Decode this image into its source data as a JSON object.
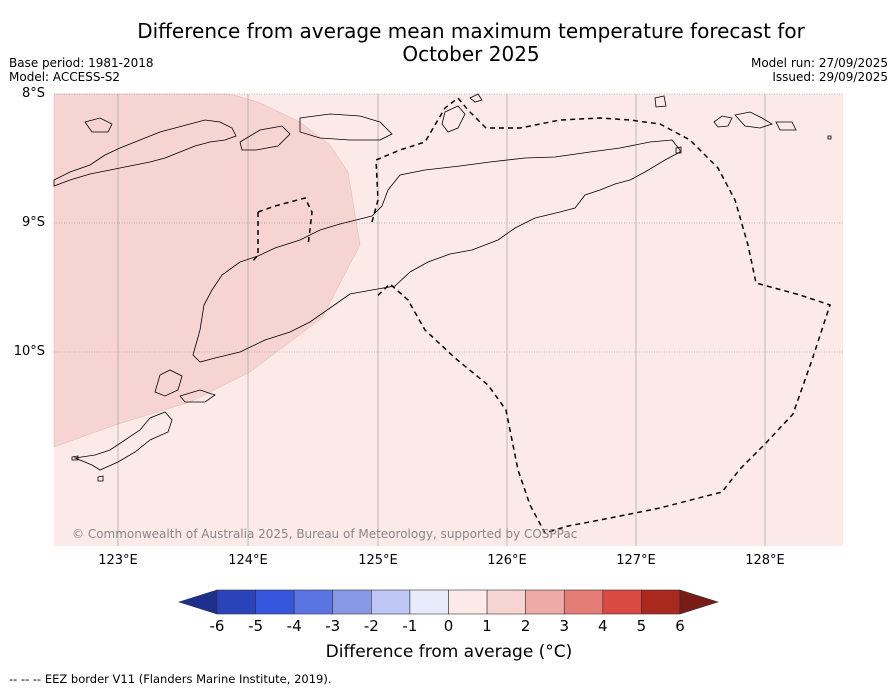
{
  "title": "Difference from average mean maximum temperature forecast for October 2025",
  "base_period": "Base period: 1981-2018",
  "model": "Model: ACCESS-S2",
  "model_run": "Model run: 27/09/2025",
  "issued": "Issued: 29/09/2025",
  "lat_labels": [
    "8°S",
    "9°S",
    "10°S"
  ],
  "lon_labels": [
    "123°E",
    "124°E",
    "125°E",
    "126°E",
    "127°E",
    "128°E"
  ],
  "copyright": "© Commonwealth of Australia 2025, Bureau of Meteorology, supported by COSPPac",
  "colorbar": {
    "ticks": [
      "-6",
      "-5",
      "-4",
      "-3",
      "-2",
      "-1",
      "0",
      "1",
      "2",
      "3",
      "4",
      "5",
      "6"
    ],
    "label": "Difference from average (°C)",
    "colors": [
      "#1f2f8c",
      "#2a43bb",
      "#3556dd",
      "#5a75e2",
      "#8798e9",
      "#bdc6f4",
      "#e8ebfb",
      "#fbeae8",
      "#f6d4d2",
      "#eeaaa6",
      "#e57d77",
      "#d94a42",
      "#a9291f",
      "#7a1c16"
    ]
  },
  "regions": [
    {
      "name": "0 to 1 °C",
      "color": "#fbeae8"
    },
    {
      "name": "1 to 2 °C",
      "color": "#f6d4d2"
    }
  ],
  "footnote": "-- -- -- EEZ border V11 (Flanders Marine Institute, 2019)."
}
